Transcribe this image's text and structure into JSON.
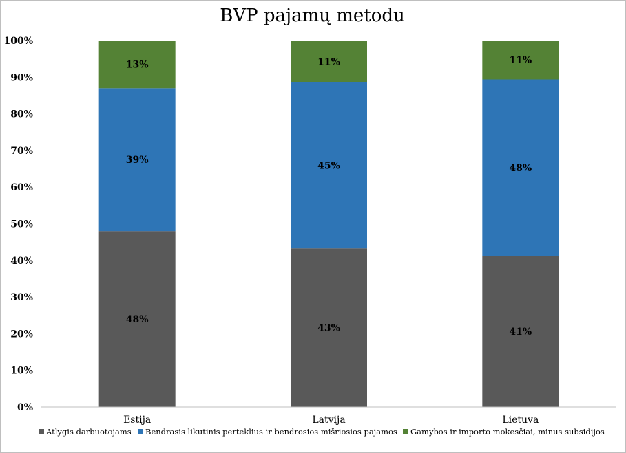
{
  "chart_data": {
    "type": "bar",
    "stacked": true,
    "title": "BVP pajamų metodu",
    "categories": [
      "Estija",
      "Latvija",
      "Lietuva"
    ],
    "series": [
      {
        "name": "Atlygis darbuotojams",
        "color": "#595959",
        "values": [
          48,
          43.3,
          41.2
        ],
        "labels": [
          "48%",
          "43%",
          "41%"
        ]
      },
      {
        "name": "Bendrasis likutinis perteklius ir bendrosios mišriosios pajamos",
        "color": "#2e75b6",
        "values": [
          39,
          45.3,
          48.2
        ],
        "labels": [
          "39%",
          "45%",
          "48%"
        ]
      },
      {
        "name": "Gamybos ir importo mokesčiai, minus subsidijos",
        "color": "#548235",
        "values": [
          13,
          11.4,
          10.6
        ],
        "labels": [
          "13%",
          "11%",
          "11%"
        ]
      }
    ],
    "ylim": [
      0,
      100
    ],
    "yticks": [
      "0%",
      "10%",
      "20%",
      "30%",
      "40%",
      "50%",
      "60%",
      "70%",
      "80%",
      "90%",
      "100%"
    ],
    "grid": false,
    "legend_position": "bottom"
  }
}
